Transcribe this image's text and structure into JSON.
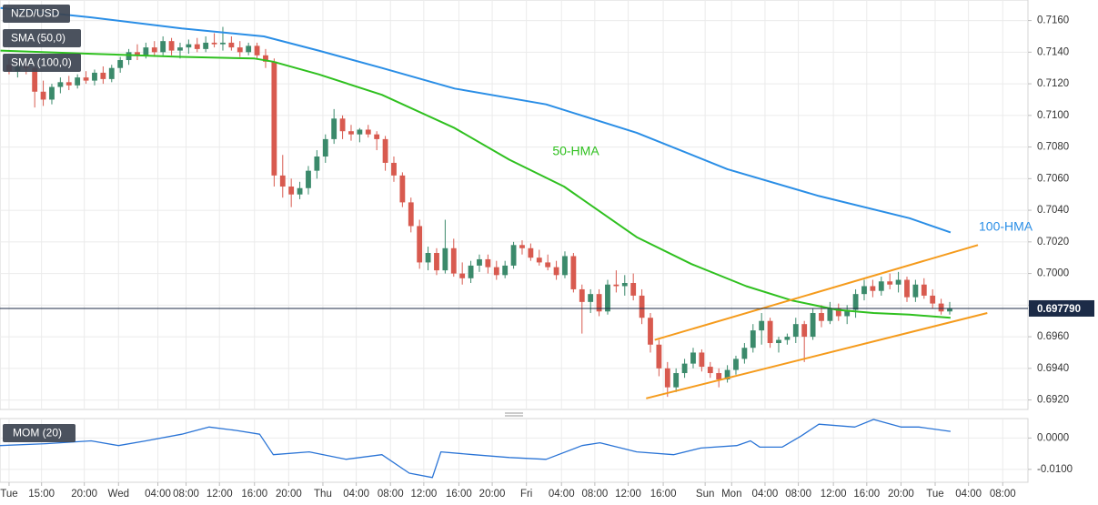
{
  "chart_data": [
    {
      "type": "candlestick",
      "title": "NZD/USD",
      "legend": [
        "SMA (50,0)",
        "SMA (100,0)"
      ],
      "up_color": "#3b8a6b",
      "down_color": "#d85a4f",
      "x": [
        0,
        1,
        2,
        3,
        4,
        5,
        6,
        7,
        8,
        9,
        10,
        11,
        12,
        13,
        14,
        15,
        16,
        17,
        18,
        19,
        20,
        21,
        22,
        23,
        24,
        25,
        26,
        27,
        28,
        29,
        30,
        31,
        32,
        33,
        34,
        35,
        36,
        37,
        38,
        39,
        40,
        41,
        42,
        43,
        44,
        45,
        46,
        47,
        48,
        49,
        50,
        51,
        52,
        53,
        54,
        55,
        56,
        57,
        58,
        59,
        60,
        61,
        62,
        63,
        64,
        65,
        66,
        67,
        68,
        69,
        70,
        71,
        72,
        73,
        74,
        75,
        76,
        77,
        78,
        79,
        80,
        81,
        82,
        83,
        84,
        85,
        86,
        87,
        88,
        89,
        90,
        91,
        92,
        93,
        94,
        95,
        96,
        97,
        98,
        99,
        100,
        101,
        102,
        103,
        104,
        105,
        106,
        107,
        108,
        109,
        110
      ],
      "candles": [
        [
          0.7132,
          0.7136,
          0.7126,
          0.7128
        ],
        [
          0.7128,
          0.7133,
          0.7124,
          0.7131
        ],
        [
          0.7131,
          0.7135,
          0.7126,
          0.713
        ],
        [
          0.713,
          0.7132,
          0.7105,
          0.7115
        ],
        [
          0.7115,
          0.7122,
          0.7106,
          0.711
        ],
        [
          0.711,
          0.712,
          0.7107,
          0.7118
        ],
        [
          0.7118,
          0.7124,
          0.7114,
          0.7121
        ],
        [
          0.7121,
          0.7125,
          0.7116,
          0.7119
        ],
        [
          0.7119,
          0.7126,
          0.7117,
          0.7124
        ],
        [
          0.7124,
          0.7128,
          0.712,
          0.7122
        ],
        [
          0.7122,
          0.7129,
          0.7119,
          0.7127
        ],
        [
          0.7127,
          0.7131,
          0.712,
          0.7123
        ],
        [
          0.7123,
          0.7132,
          0.7121,
          0.713
        ],
        [
          0.713,
          0.7137,
          0.7127,
          0.7135
        ],
        [
          0.7135,
          0.7142,
          0.7132,
          0.714
        ],
        [
          0.714,
          0.7145,
          0.7135,
          0.7138
        ],
        [
          0.7138,
          0.7146,
          0.7136,
          0.7143
        ],
        [
          0.7143,
          0.7147,
          0.7137,
          0.714
        ],
        [
          0.714,
          0.715,
          0.7138,
          0.7147
        ],
        [
          0.7147,
          0.7149,
          0.7138,
          0.7141
        ],
        [
          0.7141,
          0.7146,
          0.7136,
          0.7143
        ],
        [
          0.7143,
          0.7148,
          0.7139,
          0.7145
        ],
        [
          0.7145,
          0.7149,
          0.714,
          0.7142
        ],
        [
          0.7142,
          0.715,
          0.714,
          0.7146
        ],
        [
          0.7146,
          0.7152,
          0.7143,
          0.7145
        ],
        [
          0.7145,
          0.7156,
          0.7141,
          0.7146
        ],
        [
          0.7146,
          0.715,
          0.7141,
          0.7143
        ],
        [
          0.7143,
          0.7147,
          0.7137,
          0.714
        ],
        [
          0.714,
          0.7146,
          0.7138,
          0.7144
        ],
        [
          0.7144,
          0.7146,
          0.7136,
          0.7138
        ],
        [
          0.7138,
          0.7142,
          0.713,
          0.7134
        ],
        [
          0.7134,
          0.7136,
          0.7055,
          0.7062
        ],
        [
          0.7062,
          0.7075,
          0.7048,
          0.7055
        ],
        [
          0.7055,
          0.706,
          0.7042,
          0.705
        ],
        [
          0.705,
          0.7058,
          0.7047,
          0.7054
        ],
        [
          0.7054,
          0.7068,
          0.705,
          0.7065
        ],
        [
          0.7065,
          0.7078,
          0.706,
          0.7074
        ],
        [
          0.7074,
          0.7088,
          0.707,
          0.7085
        ],
        [
          0.7085,
          0.7104,
          0.7082,
          0.7098
        ],
        [
          0.7098,
          0.71,
          0.7085,
          0.709
        ],
        [
          0.709,
          0.7094,
          0.7084,
          0.7088
        ],
        [
          0.7088,
          0.7092,
          0.7083,
          0.7091
        ],
        [
          0.7091,
          0.7094,
          0.7086,
          0.7088
        ],
        [
          0.7088,
          0.709,
          0.7078,
          0.7085
        ],
        [
          0.7085,
          0.7087,
          0.7065,
          0.707
        ],
        [
          0.707,
          0.7074,
          0.7058,
          0.7062
        ],
        [
          0.7062,
          0.7064,
          0.7042,
          0.7045
        ],
        [
          0.7045,
          0.7048,
          0.7026,
          0.703
        ],
        [
          0.703,
          0.7034,
          0.7003,
          0.7007
        ],
        [
          0.7007,
          0.7017,
          0.7002,
          0.7013
        ],
        [
          0.7013,
          0.7016,
          0.6999,
          0.7002
        ],
        [
          0.7002,
          0.7034,
          0.7,
          0.7016
        ],
        [
          0.7016,
          0.7022,
          0.6998,
          0.7
        ],
        [
          0.7,
          0.7007,
          0.6993,
          0.6997
        ],
        [
          0.6997,
          0.7008,
          0.6994,
          0.7005
        ],
        [
          0.7005,
          0.7012,
          0.7001,
          0.7009
        ],
        [
          0.7009,
          0.7012,
          0.7,
          0.7004
        ],
        [
          0.7004,
          0.7008,
          0.6996,
          0.6999
        ],
        [
          0.6999,
          0.7008,
          0.6997,
          0.7005
        ],
        [
          0.7005,
          0.702,
          0.7003,
          0.7018
        ],
        [
          0.7018,
          0.7021,
          0.7012,
          0.7016
        ],
        [
          0.7016,
          0.7019,
          0.7008,
          0.701
        ],
        [
          0.701,
          0.7015,
          0.7005,
          0.7007
        ],
        [
          0.7007,
          0.7012,
          0.7002,
          0.7004
        ],
        [
          0.7004,
          0.7008,
          0.6996,
          0.6999
        ],
        [
          0.6999,
          0.7014,
          0.6997,
          0.7011
        ],
        [
          0.7011,
          0.7013,
          0.6988,
          0.699
        ],
        [
          0.699,
          0.6993,
          0.6962,
          0.6982
        ],
        [
          0.6982,
          0.699,
          0.6975,
          0.6987
        ],
        [
          0.6987,
          0.699,
          0.6973,
          0.6976
        ],
        [
          0.6976,
          0.6996,
          0.6974,
          0.6993
        ],
        [
          0.6993,
          0.7002,
          0.6988,
          0.6992
        ],
        [
          0.6992,
          0.6999,
          0.6986,
          0.6994
        ],
        [
          0.6994,
          0.7,
          0.6983,
          0.6986
        ],
        [
          0.6986,
          0.699,
          0.6968,
          0.6972
        ],
        [
          0.6972,
          0.6975,
          0.695,
          0.6955
        ],
        [
          0.6955,
          0.6958,
          0.6935,
          0.694
        ],
        [
          0.694,
          0.6944,
          0.6922,
          0.6928
        ],
        [
          0.6928,
          0.694,
          0.6925,
          0.6937
        ],
        [
          0.6937,
          0.6946,
          0.6934,
          0.6943
        ],
        [
          0.6943,
          0.6953,
          0.694,
          0.695
        ],
        [
          0.695,
          0.6952,
          0.6938,
          0.6941
        ],
        [
          0.6941,
          0.6944,
          0.6934,
          0.6937
        ],
        [
          0.6937,
          0.694,
          0.6928,
          0.6933
        ],
        [
          0.6933,
          0.6942,
          0.6931,
          0.6939
        ],
        [
          0.6939,
          0.6948,
          0.6936,
          0.6946
        ],
        [
          0.6946,
          0.6956,
          0.6943,
          0.6953
        ],
        [
          0.6953,
          0.6968,
          0.695,
          0.6964
        ],
        [
          0.6964,
          0.6975,
          0.6955,
          0.697
        ],
        [
          0.697,
          0.6972,
          0.6953,
          0.6956
        ],
        [
          0.6956,
          0.696,
          0.695,
          0.6958
        ],
        [
          0.6958,
          0.6962,
          0.6955,
          0.696
        ],
        [
          0.696,
          0.6972,
          0.6956,
          0.6968
        ],
        [
          0.6968,
          0.697,
          0.6944,
          0.696
        ],
        [
          0.696,
          0.6978,
          0.6958,
          0.6975
        ],
        [
          0.6975,
          0.698,
          0.6966,
          0.697
        ],
        [
          0.697,
          0.6982,
          0.6968,
          0.6978
        ],
        [
          0.6978,
          0.6981,
          0.697,
          0.6973
        ],
        [
          0.6973,
          0.698,
          0.6968,
          0.6977
        ],
        [
          0.6977,
          0.699,
          0.6972,
          0.6987
        ],
        [
          0.6987,
          0.6996,
          0.6983,
          0.6992
        ],
        [
          0.6992,
          0.6996,
          0.6985,
          0.6989
        ],
        [
          0.6989,
          0.6998,
          0.6986,
          0.6995
        ],
        [
          0.6995,
          0.7,
          0.699,
          0.6993
        ],
        [
          0.6993,
          0.7001,
          0.6988,
          0.6996
        ],
        [
          0.6996,
          0.6998,
          0.6982,
          0.6985
        ],
        [
          0.6985,
          0.6996,
          0.6982,
          0.6993
        ],
        [
          0.6993,
          0.6997,
          0.6984,
          0.6986
        ],
        [
          0.6986,
          0.699,
          0.6978,
          0.6981
        ],
        [
          0.6981,
          0.6984,
          0.6974,
          0.6976
        ],
        [
          0.6976,
          0.6982,
          0.6974,
          0.6978
        ]
      ],
      "overlays": [
        {
          "name": "50-HMA",
          "color": "#2fc01f",
          "x": [
            -1,
            9.6,
            20.2,
            28.7,
            30.9,
            36.2,
            43.6,
            52.1,
            58.5,
            64.9,
            73.4,
            79.8,
            86.2,
            91.5,
            96.8,
            101.1,
            105.3,
            110.1
          ],
          "values": [
            0.7141,
            0.7139,
            0.7137,
            0.7136,
            0.7134,
            0.7126,
            0.7113,
            0.7092,
            0.7072,
            0.7055,
            0.7023,
            0.7006,
            0.6992,
            0.6983,
            0.6977,
            0.6975,
            0.6974,
            0.6972
          ]
        },
        {
          "name": "100-HMA",
          "color": "#2a8ee6",
          "x": [
            -1,
            9.6,
            20.2,
            29.8,
            36.2,
            43.6,
            52.1,
            62.8,
            73.4,
            84,
            94.7,
            105.3,
            110.1
          ],
          "values": [
            0.7168,
            0.7162,
            0.7155,
            0.715,
            0.7141,
            0.713,
            0.7117,
            0.7107,
            0.7089,
            0.7066,
            0.7049,
            0.7035,
            0.7026
          ]
        },
        {
          "color": "#f59b1c",
          "x": [
            75.5,
            113.3
          ],
          "values": [
            0.6958,
            0.7018
          ]
        },
        {
          "color": "#f59b1c",
          "x": [
            74.5,
            114.4
          ],
          "values": [
            0.6921,
            0.6975
          ]
        }
      ],
      "last_price": {
        "value": 0.69779,
        "label": "0.697790"
      },
      "xlim": [
        -1.06,
        119.15
      ],
      "ylim": [
        0.6914,
        0.7173
      ],
      "yticks": [
        {
          "value": 0.692,
          "label": "0.6920"
        },
        {
          "value": 0.694,
          "label": "0.6940"
        },
        {
          "value": 0.696,
          "label": "0.6960"
        },
        {
          "value": 0.698,
          "label": "0.6980"
        },
        {
          "value": 0.7,
          "label": "0.7000"
        },
        {
          "value": 0.702,
          "label": "0.7020"
        },
        {
          "value": 0.704,
          "label": "0.7040"
        },
        {
          "value": 0.706,
          "label": "0.7060"
        },
        {
          "value": 0.708,
          "label": "0.7080"
        },
        {
          "value": 0.71,
          "label": "0.7100"
        },
        {
          "value": 0.712,
          "label": "0.7120"
        },
        {
          "value": 0.714,
          "label": "0.7140"
        },
        {
          "value": 0.716,
          "label": "0.7160"
        }
      ],
      "grid": true
    },
    {
      "type": "line",
      "title": "MOM (20)",
      "color": "#2a74d6",
      "x": [
        -1.1,
        4.3,
        9.6,
        12.8,
        16,
        20.2,
        23.4,
        26.6,
        29.3,
        30.9,
        35.1,
        39.4,
        43.6,
        46.8,
        49.5,
        50.5,
        54.3,
        58.5,
        62.8,
        67,
        69.1,
        73.4,
        77.7,
        80.9,
        85.1,
        86.7,
        87.8,
        90.4,
        92.6,
        94.7,
        98.9,
        101.1,
        104.3,
        106.4,
        110.1
      ],
      "values": [
        -0.0024,
        -0.0018,
        -0.0009,
        -0.0024,
        -0.0009,
        0.0012,
        0.0035,
        0.0024,
        0.0012,
        -0.0053,
        -0.0044,
        -0.0068,
        -0.0053,
        -0.0112,
        -0.0126,
        -0.0044,
        -0.0053,
        -0.0062,
        -0.0068,
        -0.0024,
        -0.0015,
        -0.0044,
        -0.0053,
        -0.0032,
        -0.0024,
        -0.0009,
        -0.0029,
        -0.0029,
        0.0006,
        0.0044,
        0.0035,
        0.0059,
        0.0035,
        0.0035,
        0.0021
      ],
      "xlim": [
        -1.06,
        119.15
      ],
      "xticks": [
        {
          "value": 0,
          "label": "Tue"
        },
        {
          "value": 3.8,
          "label": "15:00"
        },
        {
          "value": 8.8,
          "label": "20:00"
        },
        {
          "value": 12.8,
          "label": "Wed"
        },
        {
          "value": 17.4,
          "label": "04:00"
        },
        {
          "value": 20.7,
          "label": "08:00"
        },
        {
          "value": 24.6,
          "label": "12:00"
        },
        {
          "value": 28.7,
          "label": "16:00"
        },
        {
          "value": 32.7,
          "label": "20:00"
        },
        {
          "value": 36.7,
          "label": "Thu"
        },
        {
          "value": 40.6,
          "label": "04:00"
        },
        {
          "value": 44.6,
          "label": "08:00"
        },
        {
          "value": 48.5,
          "label": "12:00"
        },
        {
          "value": 52.6,
          "label": "16:00"
        },
        {
          "value": 56.5,
          "label": "20:00"
        },
        {
          "value": 60.5,
          "label": "Fri"
        },
        {
          "value": 64.6,
          "label": "04:00"
        },
        {
          "value": 68.5,
          "label": "08:00"
        },
        {
          "value": 72.4,
          "label": "12:00"
        },
        {
          "value": 76.5,
          "label": "16:00"
        },
        {
          "value": 81.4,
          "label": "Sun"
        },
        {
          "value": 84.5,
          "label": "Mon"
        },
        {
          "value": 88.4,
          "label": "04:00"
        },
        {
          "value": 92.3,
          "label": "08:00"
        },
        {
          "value": 96.4,
          "label": "12:00"
        },
        {
          "value": 100.3,
          "label": "16:00"
        },
        {
          "value": 104.3,
          "label": "20:00"
        },
        {
          "value": 108.3,
          "label": "Tue"
        },
        {
          "value": 112.2,
          "label": "04:00"
        },
        {
          "value": 116.2,
          "label": "08:00"
        }
      ],
      "ylim": [
        -0.0141,
        0.0062
      ],
      "yticks": [
        {
          "value": -0.01,
          "label": "-0.0100"
        },
        {
          "value": 0,
          "label": "0.0000"
        }
      ],
      "grid": true
    }
  ]
}
